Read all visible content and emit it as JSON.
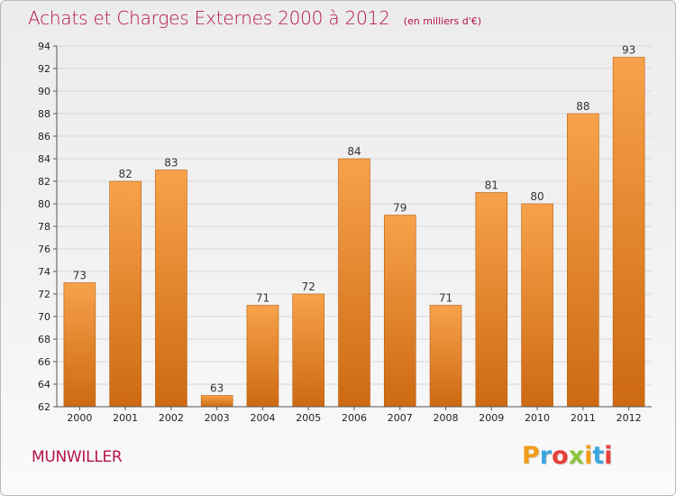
{
  "header": {
    "title": "Achats et Charges Externes 2000 à 2012",
    "unit": "(en milliers d'€)"
  },
  "footer": {
    "place": "MUNWILLER",
    "logo": "Proxiti",
    "logo_colors": [
      "#f39c1a",
      "#3aa6dd",
      "#e8403a",
      "#8cc63f",
      "#f39c1a",
      "#3aa6dd",
      "#e8403a"
    ]
  },
  "colors": {
    "bar_top": "#f7a24a",
    "bar_bottom": "#cd6a12",
    "bar_edge": "#b85d0e",
    "grid": "#d8d8d8",
    "title": "#b5124e"
  },
  "chart_data": {
    "type": "bar",
    "title": "Achats et Charges Externes 2000 à 2012",
    "subtitle": "(en milliers d'€)",
    "xlabel": "",
    "ylabel": "",
    "categories": [
      "2000",
      "2001",
      "2002",
      "2003",
      "2004",
      "2005",
      "2006",
      "2007",
      "2008",
      "2009",
      "2010",
      "2011",
      "2012"
    ],
    "values": [
      73,
      82,
      83,
      63,
      71,
      72,
      84,
      79,
      71,
      81,
      80,
      88,
      93
    ],
    "ylim": [
      62,
      94
    ],
    "yticks": [
      62,
      64,
      66,
      68,
      70,
      72,
      74,
      76,
      78,
      80,
      82,
      84,
      86,
      88,
      90,
      92,
      94
    ],
    "grid": true,
    "legend": "none"
  }
}
